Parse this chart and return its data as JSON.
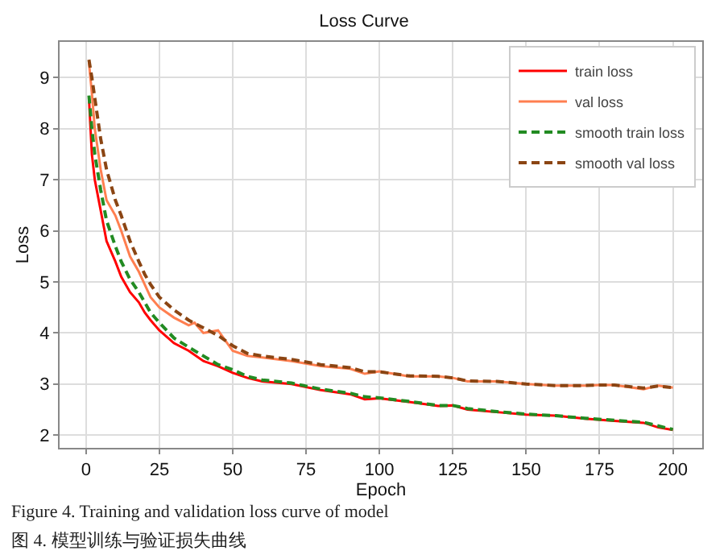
{
  "chart_data": {
    "type": "line",
    "title": "Loss Curve",
    "xlabel": "Epoch",
    "ylabel": "Loss",
    "annotations": [
      "Figure 4. Training and validation loss curve of model",
      "图 4. 模型训练与验证损失曲线"
    ],
    "xlim": [
      -9,
      210
    ],
    "ylim": [
      1.75,
      9.7
    ],
    "xticks": [
      0,
      25,
      50,
      75,
      100,
      125,
      150,
      175,
      200
    ],
    "yticks": [
      2,
      3,
      4,
      5,
      6,
      7,
      8,
      9
    ],
    "grid": true,
    "legend": "top right",
    "marker": "none",
    "series": [
      {
        "name": "train loss",
        "color": "#ff0000",
        "line_style": "solid",
        "x": [
          1,
          2,
          3,
          5,
          7,
          10,
          12,
          15,
          18,
          20,
          22,
          25,
          30,
          35,
          40,
          45,
          50,
          55,
          60,
          70,
          80,
          90,
          95,
          100,
          110,
          120,
          125,
          130,
          140,
          150,
          160,
          170,
          180,
          190,
          195,
          200
        ],
        "values": [
          8.6,
          7.5,
          7.0,
          6.4,
          5.8,
          5.4,
          5.1,
          4.8,
          4.6,
          4.4,
          4.25,
          4.05,
          3.8,
          3.65,
          3.45,
          3.35,
          3.22,
          3.12,
          3.05,
          3.0,
          2.88,
          2.8,
          2.7,
          2.72,
          2.65,
          2.57,
          2.58,
          2.5,
          2.45,
          2.4,
          2.38,
          2.32,
          2.28,
          2.24,
          2.15,
          2.1
        ]
      },
      {
        "name": "val loss",
        "color": "#ff7f50",
        "line_style": "solid",
        "x": [
          1,
          2,
          3,
          5,
          7,
          10,
          12,
          15,
          18,
          20,
          22,
          25,
          30,
          35,
          37,
          40,
          45,
          50,
          55,
          60,
          70,
          80,
          90,
          95,
          100,
          110,
          120,
          125,
          130,
          140,
          150,
          160,
          170,
          175,
          180,
          190,
          195,
          200
        ],
        "values": [
          9.3,
          8.7,
          8.0,
          7.2,
          6.6,
          6.3,
          6.0,
          5.5,
          5.2,
          4.95,
          4.7,
          4.5,
          4.3,
          4.15,
          4.2,
          4.0,
          4.05,
          3.65,
          3.55,
          3.52,
          3.45,
          3.35,
          3.3,
          3.2,
          3.25,
          3.15,
          3.15,
          3.12,
          3.05,
          3.05,
          3.0,
          2.97,
          2.97,
          2.98,
          2.98,
          2.9,
          2.97,
          2.93
        ]
      },
      {
        "name": "smooth train loss",
        "color": "#228b22",
        "line_style": "dashed",
        "x": [
          1,
          2,
          3,
          5,
          7,
          10,
          12,
          15,
          18,
          20,
          22,
          25,
          30,
          35,
          40,
          45,
          50,
          55,
          60,
          70,
          80,
          90,
          95,
          100,
          110,
          120,
          125,
          130,
          140,
          150,
          160,
          170,
          180,
          190,
          195,
          200
        ],
        "values": [
          8.65,
          8.0,
          7.5,
          6.8,
          6.2,
          5.7,
          5.4,
          5.05,
          4.8,
          4.6,
          4.4,
          4.2,
          3.9,
          3.72,
          3.55,
          3.38,
          3.28,
          3.15,
          3.08,
          3.02,
          2.9,
          2.82,
          2.75,
          2.73,
          2.66,
          2.58,
          2.58,
          2.52,
          2.46,
          2.41,
          2.38,
          2.33,
          2.29,
          2.25,
          2.18,
          2.11
        ]
      },
      {
        "name": "smooth val loss",
        "color": "#8b4513",
        "line_style": "dashed",
        "x": [
          1,
          2,
          3,
          5,
          7,
          10,
          12,
          15,
          18,
          20,
          22,
          25,
          30,
          35,
          40,
          45,
          50,
          55,
          60,
          70,
          80,
          90,
          95,
          100,
          110,
          120,
          125,
          130,
          140,
          150,
          160,
          170,
          175,
          180,
          190,
          195,
          200
        ],
        "values": [
          9.35,
          9.0,
          8.6,
          7.8,
          7.2,
          6.6,
          6.3,
          5.8,
          5.4,
          5.15,
          4.95,
          4.7,
          4.45,
          4.25,
          4.1,
          3.95,
          3.75,
          3.6,
          3.55,
          3.48,
          3.38,
          3.32,
          3.24,
          3.24,
          3.16,
          3.15,
          3.12,
          3.06,
          3.05,
          3.0,
          2.97,
          2.97,
          2.98,
          2.98,
          2.92,
          2.96,
          2.93
        ]
      }
    ]
  }
}
